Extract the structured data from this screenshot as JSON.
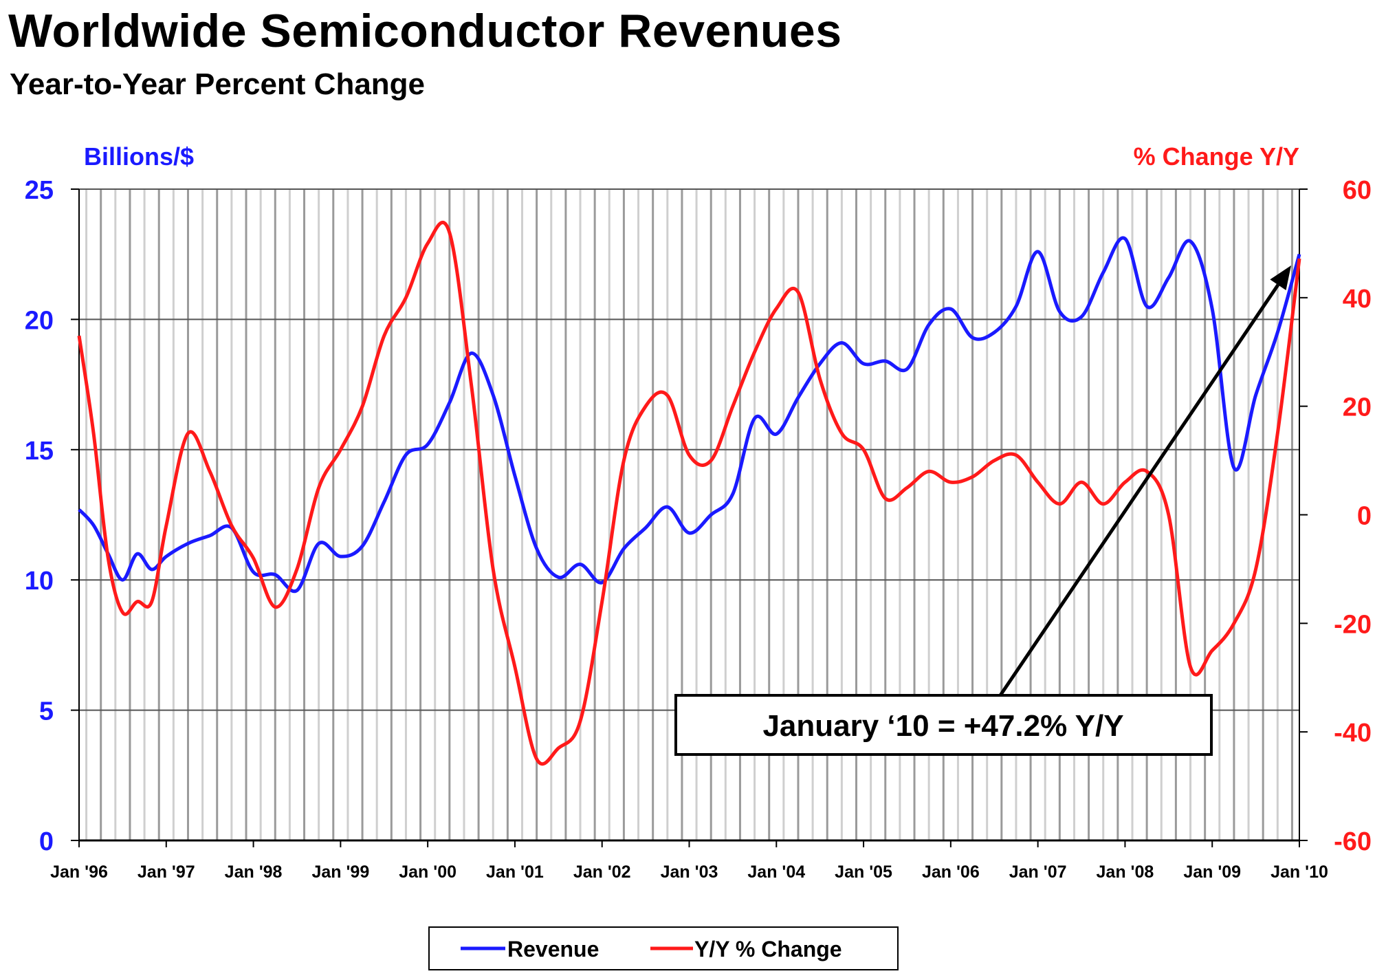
{
  "chart_data": {
    "type": "line",
    "title": "Worldwide Semiconductor Revenues",
    "subtitle": "Year-to-Year Percent Change",
    "y_left_label": "Billions/$",
    "y_right_label": "% Change Y/Y",
    "y_left_range": [
      0,
      25
    ],
    "y_left_ticks": [
      0,
      5,
      10,
      15,
      20,
      25
    ],
    "y_right_range": [
      -60,
      60
    ],
    "y_right_ticks": [
      -60,
      -40,
      -20,
      0,
      20,
      40,
      60
    ],
    "x_range": [
      "1996-01",
      "2010-01"
    ],
    "x_tick_labels": [
      "Jan '96",
      "Jan '97",
      "Jan '98",
      "Jan '99",
      "Jan '00",
      "Jan '01",
      "Jan '02",
      "Jan '03",
      "Jan '04",
      "Jan '05",
      "Jan '06",
      "Jan '07",
      "Jan '08",
      "Jan '09",
      "Jan '10"
    ],
    "grid": true,
    "legend_position": "bottom-center",
    "annotation": {
      "text": "January ‘10 = +47.2% Y/Y",
      "points_to": {
        "x": "2010-01",
        "y": 47.2,
        "axis": "right"
      }
    },
    "colors": {
      "revenue": "#1a1aff",
      "yoy": "#ff1a1a",
      "left_axis": "#1a1aff",
      "right_axis": "#ff1a1a"
    },
    "series": [
      {
        "name": "Revenue",
        "axis": "left",
        "x": [
          "1996-01",
          "1996-03",
          "1996-05",
          "1996-07",
          "1996-09",
          "1996-11",
          "1997-01",
          "1997-04",
          "1997-07",
          "1997-10",
          "1998-01",
          "1998-04",
          "1998-07",
          "1998-10",
          "1999-01",
          "1999-04",
          "1999-07",
          "1999-10",
          "2000-01",
          "2000-04",
          "2000-07",
          "2000-10",
          "2001-01",
          "2001-04",
          "2001-07",
          "2001-10",
          "2002-01",
          "2002-04",
          "2002-07",
          "2002-10",
          "2003-01",
          "2003-04",
          "2003-07",
          "2003-10",
          "2004-01",
          "2004-04",
          "2004-07",
          "2004-10",
          "2005-01",
          "2005-04",
          "2005-07",
          "2005-10",
          "2006-01",
          "2006-04",
          "2006-07",
          "2006-10",
          "2007-01",
          "2007-04",
          "2007-07",
          "2007-10",
          "2008-01",
          "2008-04",
          "2008-07",
          "2008-10",
          "2009-01",
          "2009-04",
          "2009-07",
          "2009-10",
          "2010-01"
        ],
        "values": [
          12.7,
          12.1,
          11.0,
          10.0,
          11.0,
          10.4,
          10.9,
          11.4,
          11.7,
          12.0,
          10.3,
          10.2,
          9.6,
          11.4,
          10.9,
          11.3,
          13.0,
          14.8,
          15.2,
          16.8,
          18.7,
          17.1,
          14.0,
          11.2,
          10.1,
          10.6,
          9.9,
          11.2,
          12.0,
          12.8,
          11.8,
          12.5,
          13.3,
          16.2,
          15.6,
          17.0,
          18.3,
          19.1,
          18.3,
          18.4,
          18.1,
          19.8,
          20.4,
          19.3,
          19.5,
          20.5,
          22.6,
          20.3,
          20.1,
          21.8,
          23.1,
          20.5,
          21.6,
          23.0,
          20.4,
          14.3,
          17.1,
          19.5,
          22.5
        ]
      },
      {
        "name": "Y/Y % Change",
        "axis": "right",
        "x": [
          "1996-01",
          "1996-03",
          "1996-05",
          "1996-07",
          "1996-09",
          "1996-11",
          "1997-01",
          "1997-04",
          "1997-07",
          "1997-10",
          "1998-01",
          "1998-04",
          "1998-07",
          "1998-10",
          "1999-01",
          "1999-04",
          "1999-07",
          "1999-10",
          "2000-01",
          "2000-04",
          "2000-07",
          "2000-10",
          "2001-01",
          "2001-04",
          "2001-07",
          "2001-10",
          "2002-01",
          "2002-04",
          "2002-07",
          "2002-10",
          "2003-01",
          "2003-04",
          "2003-07",
          "2003-10",
          "2004-01",
          "2004-04",
          "2004-07",
          "2004-10",
          "2005-01",
          "2005-04",
          "2005-07",
          "2005-10",
          "2006-01",
          "2006-04",
          "2006-07",
          "2006-10",
          "2007-01",
          "2007-04",
          "2007-07",
          "2007-10",
          "2008-01",
          "2008-04",
          "2008-07",
          "2008-10",
          "2009-01",
          "2009-04",
          "2009-07",
          "2009-10",
          "2010-01"
        ],
        "values": [
          33,
          15,
          -8,
          -18,
          -16,
          -16,
          -2,
          15,
          8,
          -2,
          -8,
          -17,
          -10,
          5,
          12,
          20,
          33,
          40,
          50,
          52,
          24,
          -10,
          -28,
          -45,
          -43,
          -38,
          -16,
          10,
          20,
          22,
          11,
          10,
          20,
          30,
          38,
          41,
          25,
          15,
          12,
          3,
          5,
          8,
          6,
          7,
          10,
          11,
          6,
          2,
          6,
          2,
          6,
          8,
          0,
          -28,
          -25,
          -20,
          -10,
          15,
          47.2
        ]
      }
    ],
    "legend": [
      {
        "name": "Revenue",
        "color": "#1a1aff"
      },
      {
        "name": "Y/Y % Change",
        "color": "#ff1a1a"
      }
    ]
  }
}
